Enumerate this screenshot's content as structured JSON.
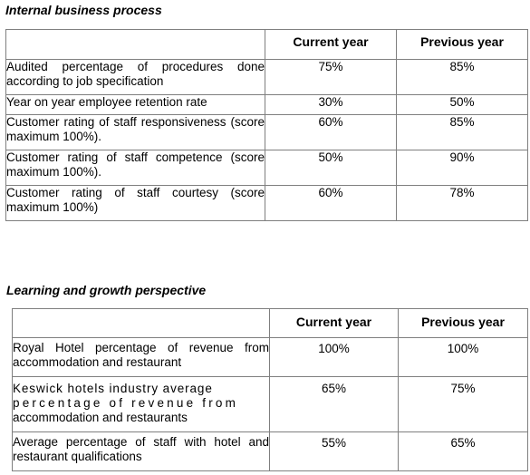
{
  "sections": [
    {
      "title": "Internal business process",
      "columns": [
        "",
        "Current year",
        "Previous year"
      ],
      "rows": [
        {
          "measure": "Audited percentage of procedures done according to job specification",
          "current": "75%",
          "previous": "85%"
        },
        {
          "measure": "Year on year employee retention rate",
          "current": "30%",
          "previous": "50%"
        },
        {
          "measure": "Customer rating of staff responsiveness (score maximum 100%).",
          "current": "60%",
          "previous": "85%"
        },
        {
          "measure": "Customer rating of staff competence (score maximum 100%).",
          "current": "50%",
          "previous": "90%"
        },
        {
          "measure": "Customer rating of staff courtesy (score maximum 100%)",
          "current": "60%",
          "previous": "78%"
        }
      ]
    },
    {
      "title": "Learning and growth perspective",
      "columns": [
        "",
        "Current year",
        "Previous year"
      ],
      "rows": [
        {
          "measure": "Royal Hotel percentage of revenue from accommodation and restaurant",
          "current": "100%",
          "previous": "100%"
        },
        {
          "measure_lines": [
            "Keswick hotels industry average",
            "percentage of revenue from",
            "accommodation and restaurants"
          ],
          "current": "65%",
          "previous": "75%"
        },
        {
          "measure": "Average percentage of staff with hotel and restaurant qualifications",
          "current": "55%",
          "previous": "65%"
        }
      ]
    }
  ]
}
